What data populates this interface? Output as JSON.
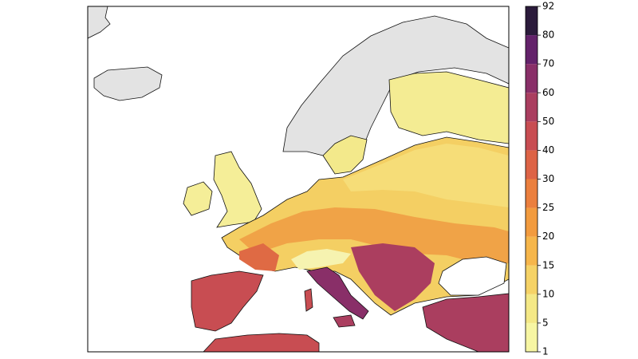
{
  "colorbar": {
    "ticks": [
      1,
      5,
      10,
      15,
      20,
      25,
      30,
      40,
      50,
      60,
      70,
      80,
      92
    ],
    "colors": [
      "#f7f6a3",
      "#f4e886",
      "#f5d266",
      "#f6b64b",
      "#f29b3f",
      "#eb7f3e",
      "#dd6346",
      "#c84d52",
      "#aa3e5f",
      "#892f68",
      "#63226a",
      "#2b1b3b"
    ]
  }
}
